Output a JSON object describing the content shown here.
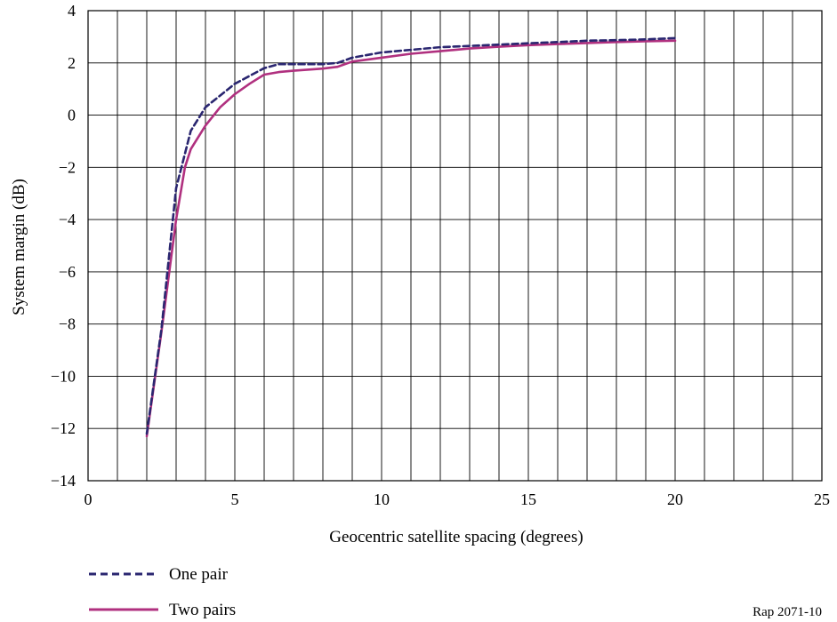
{
  "chart_data": {
    "type": "line",
    "xlabel": "Geocentric satellite spacing (degrees)",
    "ylabel": "System margin (dB)",
    "xlim": [
      0,
      25
    ],
    "ylim": [
      -14,
      4
    ],
    "x_ticks": [
      "0",
      "5",
      "10",
      "15",
      "20",
      "25"
    ],
    "y_ticks": [
      "4",
      "2",
      "0",
      "−2",
      "−4",
      "−6",
      "−8",
      "−10",
      "−12",
      "−14"
    ],
    "grid": true,
    "legend_position": "bottom-left",
    "series": [
      {
        "name": "One pair",
        "style": "dashed",
        "color": "#2a2670",
        "x": [
          2.0,
          2.5,
          3.0,
          3.5,
          4.0,
          5.0,
          6.0,
          6.5,
          7.0,
          8.0,
          8.5,
          9.0,
          10.0,
          11.0,
          12.0,
          13.0,
          14.0,
          15.0,
          16.0,
          17.0,
          18.0,
          19.0,
          20.0
        ],
        "y": [
          -12.2,
          -8.2,
          -2.8,
          -0.6,
          0.3,
          1.2,
          1.8,
          1.95,
          1.95,
          1.95,
          2.0,
          2.2,
          2.4,
          2.5,
          2.6,
          2.65,
          2.7,
          2.75,
          2.8,
          2.85,
          2.87,
          2.9,
          2.95
        ]
      },
      {
        "name": "Two pairs",
        "style": "solid",
        "color": "#b0307f",
        "x": [
          2.0,
          2.5,
          3.0,
          3.3,
          3.5,
          4.0,
          4.5,
          5.0,
          5.5,
          6.0,
          6.5,
          7.0,
          8.0,
          8.5,
          9.0,
          10.0,
          11.0,
          12.0,
          13.0,
          14.0,
          15.0,
          16.0,
          17.0,
          18.0,
          19.0,
          20.0
        ],
        "y": [
          -12.3,
          -8.3,
          -4.0,
          -2.0,
          -1.3,
          -0.4,
          0.3,
          0.8,
          1.2,
          1.55,
          1.65,
          1.7,
          1.78,
          1.85,
          2.05,
          2.2,
          2.35,
          2.45,
          2.55,
          2.62,
          2.68,
          2.72,
          2.76,
          2.8,
          2.83,
          2.85
        ]
      }
    ]
  },
  "reference": "Rap 2071-10"
}
